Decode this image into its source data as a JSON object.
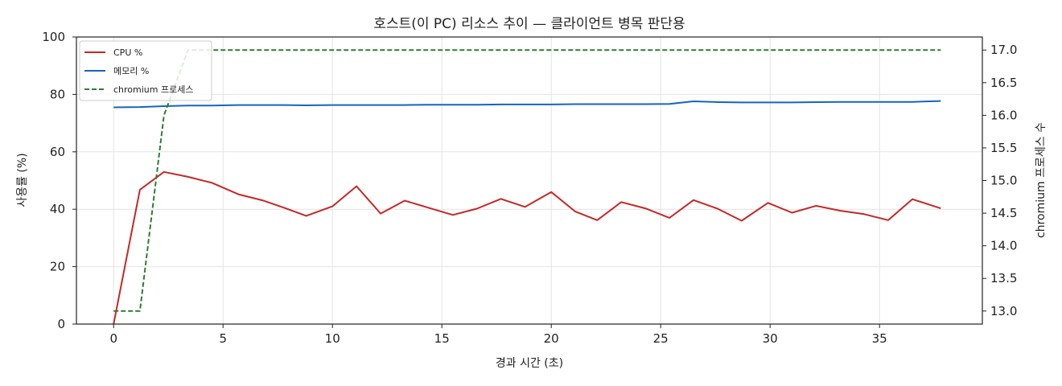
{
  "chart_data": {
    "type": "line",
    "title": "호스트(이 PC) 리소스 추이 — 클라이언트 병목 판단용",
    "xlabel": "경과 시간 (초)",
    "ylabel": "사용률 (%)",
    "y2label": "chromium 프로세스 수",
    "xlim": [
      -1.7,
      39.7
    ],
    "ylim": [
      0,
      100
    ],
    "y2lim": [
      12.8,
      17.2
    ],
    "xticks": [
      0,
      5,
      10,
      15,
      20,
      25,
      30,
      35
    ],
    "yticks": [
      0,
      20,
      40,
      60,
      80,
      100
    ],
    "y2ticks": [
      "13.0",
      "13.5",
      "14.0",
      "14.5",
      "15.0",
      "15.5",
      "16.0",
      "16.5",
      "17.0"
    ],
    "grid": true,
    "legend_position": "top-left",
    "x": [
      0,
      1.2,
      2.3,
      3.4,
      4.5,
      5.7,
      6.8,
      7.8,
      8.8,
      10,
      11.1,
      12.2,
      13.3,
      14.4,
      15.5,
      16.6,
      17.7,
      18.8,
      20,
      21.1,
      22.1,
      23.2,
      24.3,
      25.4,
      26.5,
      27.6,
      28.7,
      29.9,
      31,
      32.1,
      33.2,
      34.3,
      35.4,
      36.5,
      37.8
    ],
    "series": [
      {
        "name": "CPU %",
        "axis": "left",
        "style": "solid",
        "color": "#c62828",
        "values": [
          0,
          46.8,
          53,
          51.3,
          49.2,
          45.2,
          43.1,
          40.5,
          37.7,
          41,
          48,
          38.5,
          43,
          40.5,
          38,
          40.2,
          43.6,
          40.8,
          46,
          39.2,
          36.2,
          42.5,
          40.3,
          37,
          43.2,
          40.2,
          36,
          42.2,
          38.8,
          41.2,
          39.5,
          38.3,
          36.2,
          43.5,
          40.3
        ]
      },
      {
        "name": "메모리 %",
        "axis": "left",
        "style": "solid",
        "color": "#1565c0",
        "values": [
          75.5,
          75.6,
          75.9,
          76.1,
          76.1,
          76.3,
          76.3,
          76.3,
          76.2,
          76.3,
          76.3,
          76.3,
          76.3,
          76.4,
          76.4,
          76.4,
          76.5,
          76.5,
          76.5,
          76.6,
          76.6,
          76.6,
          76.6,
          76.7,
          77.6,
          77.3,
          77.2,
          77.2,
          77.2,
          77.3,
          77.4,
          77.4,
          77.4,
          77.4,
          77.7
        ]
      },
      {
        "name": "chromium 프로세스",
        "axis": "right",
        "style": "dashed",
        "color": "#2e7d32",
        "values": [
          13,
          13,
          16,
          17,
          17,
          17,
          17,
          17,
          17,
          17,
          17,
          17,
          17,
          17,
          17,
          17,
          17,
          17,
          17,
          17,
          17,
          17,
          17,
          17,
          17,
          17,
          17,
          17,
          17,
          17,
          17,
          17,
          17,
          17,
          17
        ]
      }
    ]
  }
}
